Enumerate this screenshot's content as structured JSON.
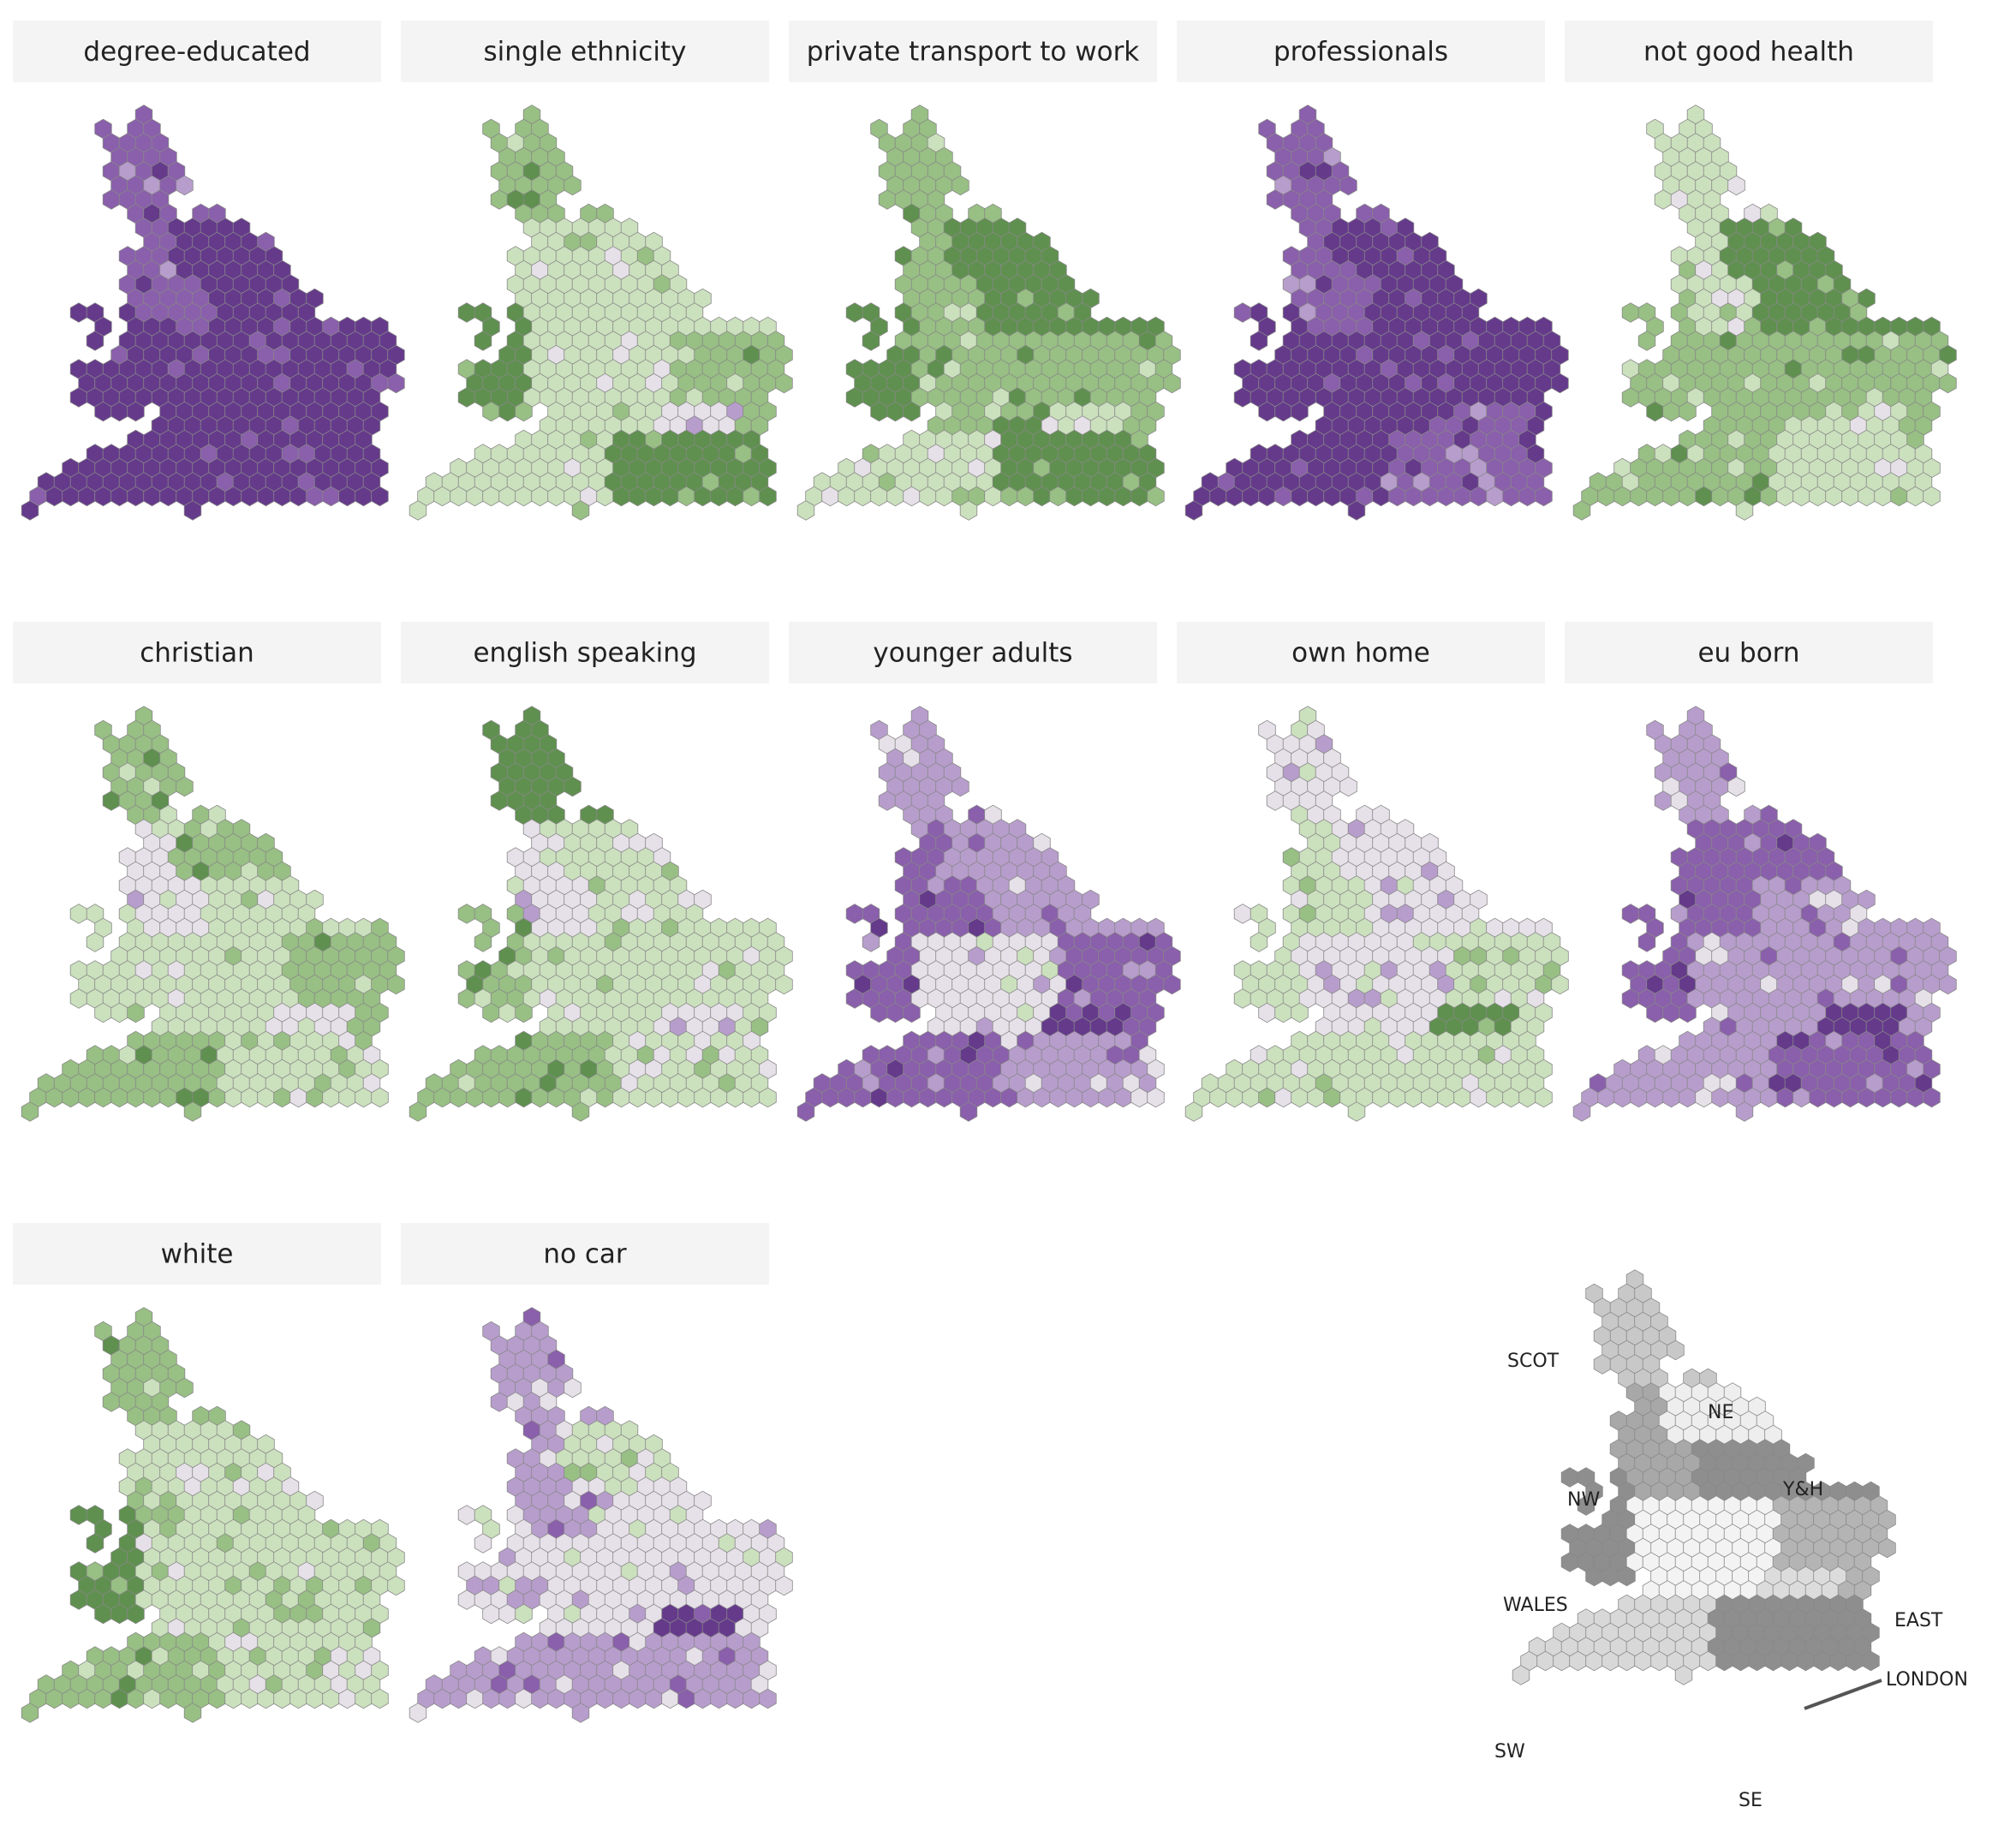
{
  "panels": [
    {
      "title": "degree-educated"
    },
    {
      "title": "single ethnicity"
    },
    {
      "title": "private transport to work"
    },
    {
      "title": "professionals"
    },
    {
      "title": "not good health"
    },
    {
      "title": "christian"
    },
    {
      "title": "english speaking"
    },
    {
      "title": "younger adults"
    },
    {
      "title": "own home"
    },
    {
      "title": "eu born"
    },
    {
      "title": "white"
    },
    {
      "title": "no car"
    }
  ],
  "legend": {
    "regions": [
      "SCOT",
      "NE",
      "Y&H",
      "NW",
      "WALES",
      "EAST",
      "LONDON",
      "SW",
      "SE"
    ]
  }
}
